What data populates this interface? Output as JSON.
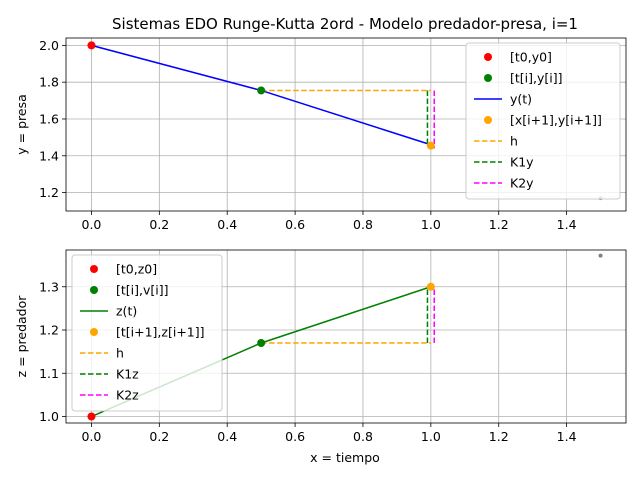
{
  "chart_data": {
    "type": "line",
    "title": "Sistemas EDO Runge-Kutta 2ord - Modelo predador-presa, i=1",
    "xlabel": "x = tiempo",
    "colors": {
      "red": "#ff0000",
      "green": "#008000",
      "blue": "#0000ff",
      "orange": "#ffa500",
      "magenta": "#ff00ff",
      "grid": "#b0b0b0"
    },
    "subplots": [
      {
        "id": "top",
        "ylabel": "y = presa",
        "xlim": [
          -0.075,
          1.575
        ],
        "ylim": [
          1.1,
          2.04
        ],
        "xticks": [
          0.0,
          0.2,
          0.4,
          0.6,
          0.8,
          1.0,
          1.2,
          1.4
        ],
        "xtick_labels": [
          "0.0",
          "0.2",
          "0.4",
          "0.6",
          "0.8",
          "1.0",
          "1.2",
          "1.4"
        ],
        "yticks": [
          1.2,
          1.4,
          1.6,
          1.8,
          2.0
        ],
        "ytick_labels": [
          "1.2",
          "1.4",
          "1.6",
          "1.8",
          "2.0"
        ],
        "legend_location": "top-right",
        "legend": [
          "[t0,y0]",
          "[t[i],y[i]]",
          "y(t)",
          "[x[i+1],y[i+1]]",
          "h",
          "K1y",
          "K2y"
        ],
        "series": {
          "t0": {
            "name": "[t0,y0]",
            "x": [
              0.0
            ],
            "y": [
              2.0
            ]
          },
          "ti": {
            "name": "[t[i],y[i]]",
            "x": [
              0.5
            ],
            "y": [
              1.755
            ]
          },
          "line": {
            "name": "y(t)",
            "x": [
              0.0,
              0.5,
              1.0
            ],
            "y": [
              2.0,
              1.755,
              1.46
            ]
          },
          "next": {
            "name": "[x[i+1],y[i+1]]",
            "x": [
              1.0
            ],
            "y": [
              1.455
            ]
          },
          "h": {
            "name": "h",
            "x": [
              0.5,
              1.0
            ],
            "y": [
              1.755,
              1.755
            ]
          },
          "k1": {
            "name": "K1y",
            "x": [
              0.99,
              0.99
            ],
            "y": [
              1.755,
              1.46
            ]
          },
          "k2": {
            "name": "K2y",
            "x": [
              1.01,
              1.01
            ],
            "y": [
              1.755,
              1.44
            ]
          }
        },
        "extra_point": {
          "x": 1.5,
          "y": 1.17
        }
      },
      {
        "id": "bottom",
        "ylabel": "z = predador",
        "xlim": [
          -0.075,
          1.575
        ],
        "ylim": [
          0.985,
          1.385
        ],
        "xticks": [
          0.0,
          0.2,
          0.4,
          0.6,
          0.8,
          1.0,
          1.2,
          1.4
        ],
        "xtick_labels": [
          "0.0",
          "0.2",
          "0.4",
          "0.6",
          "0.8",
          "1.0",
          "1.2",
          "1.4"
        ],
        "yticks": [
          1.0,
          1.1,
          1.2,
          1.3
        ],
        "ytick_labels": [
          "1.0",
          "1.1",
          "1.2",
          "1.3"
        ],
        "legend_location": "top-left",
        "legend": [
          "[t0,z0]",
          "[t[i],v[i]]",
          "z(t)",
          "[t[i+1],z[i+1]]",
          "h",
          "K1z",
          "K2z"
        ],
        "series": {
          "t0": {
            "name": "[t0,z0]",
            "x": [
              0.0
            ],
            "y": [
              1.0
            ]
          },
          "ti": {
            "name": "[t[i],v[i]]",
            "x": [
              0.5
            ],
            "y": [
              1.17
            ]
          },
          "line": {
            "name": "z(t)",
            "x": [
              0.0,
              0.5,
              1.0
            ],
            "y": [
              1.0,
              1.17,
              1.3
            ]
          },
          "next": {
            "name": "[t[i+1],z[i+1]]",
            "x": [
              1.0
            ],
            "y": [
              1.3
            ]
          },
          "h": {
            "name": "h",
            "x": [
              0.5,
              1.0
            ],
            "y": [
              1.17,
              1.17
            ]
          },
          "k1": {
            "name": "K1z",
            "x": [
              0.99,
              0.99
            ],
            "y": [
              1.17,
              1.3
            ]
          },
          "k2": {
            "name": "K2z",
            "x": [
              1.01,
              1.01
            ],
            "y": [
              1.17,
              1.3
            ]
          }
        },
        "extra_point": {
          "x": 1.5,
          "y": 1.372
        }
      }
    ]
  }
}
